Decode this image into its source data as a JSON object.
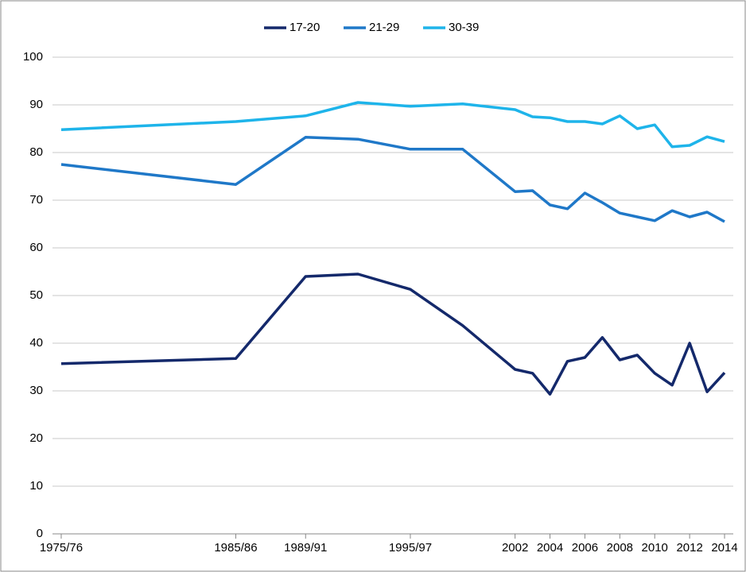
{
  "chart_data": {
    "type": "line",
    "x": [
      1976,
      1986,
      1990,
      1993,
      1996,
      1999,
      2002,
      2003,
      2004,
      2005,
      2006,
      2007,
      2008,
      2009,
      2010,
      2011,
      2012,
      2013,
      2014
    ],
    "series": [
      {
        "name": "17-20",
        "color": "#14296b",
        "values": [
          35.7,
          36.8,
          54,
          54.5,
          51.3,
          43.7,
          34.5,
          33.7,
          29.3,
          36.2,
          37,
          41.2,
          36.5,
          37.5,
          33.7,
          31.2,
          40,
          29.8,
          33.8
        ]
      },
      {
        "name": "21-29",
        "color": "#1f78c8",
        "values": [
          77.5,
          73.3,
          83.2,
          82.8,
          80.7,
          80.7,
          71.8,
          72,
          69,
          68.2,
          71.5,
          69.5,
          67.3,
          66.5,
          65.7,
          67.8,
          66.5,
          67.5,
          65.5
        ]
      },
      {
        "name": "30-39",
        "color": "#1eb4ea",
        "values": [
          84.8,
          86.5,
          87.7,
          90.5,
          89.7,
          90.2,
          89,
          87.5,
          87.3,
          86.5,
          86.5,
          86,
          87.7,
          85,
          85.8,
          81.2,
          81.5,
          83.3,
          82.3
        ]
      }
    ],
    "xlim": [
      1975.5,
      2014.5
    ],
    "xticks": [
      {
        "value": 1976,
        "label": "1975/76"
      },
      {
        "value": 1986,
        "label": "1985/86"
      },
      {
        "value": 1990,
        "label": "1989/91"
      },
      {
        "value": 1996,
        "label": "1995/97"
      },
      2002,
      2004,
      2006,
      2008,
      2010,
      2012,
      2014
    ],
    "ylim": [
      0,
      100
    ],
    "yticks": [
      0,
      10,
      20,
      30,
      40,
      50,
      60,
      70,
      80,
      90,
      100
    ],
    "grid": true,
    "legend": "top"
  }
}
